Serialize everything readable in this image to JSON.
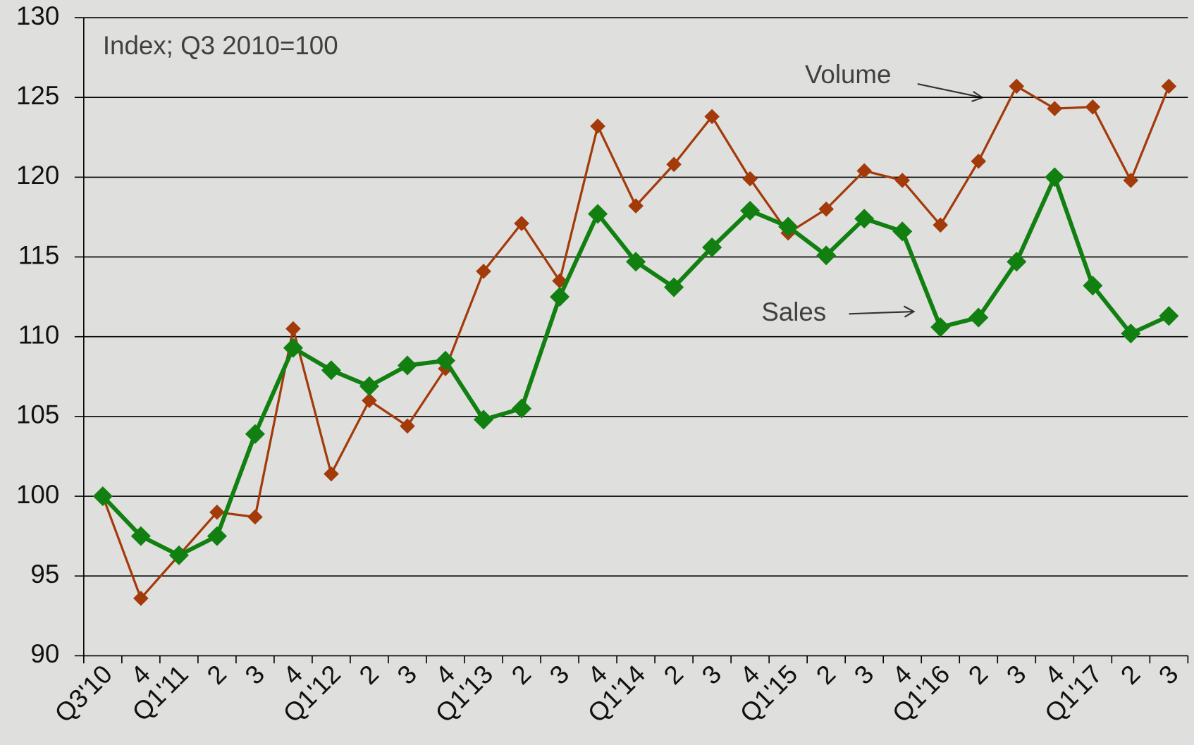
{
  "chart_data": {
    "type": "line",
    "subtitle": "Index; Q3 2010=100",
    "categories": [
      "Q3'10",
      "4",
      "Q1'11",
      "2",
      "3",
      "4",
      "Q1'12",
      "2",
      "3",
      "4",
      "Q1'13",
      "2",
      "3",
      "4",
      "Q1'14",
      "2",
      "3",
      "4",
      "Q1'15",
      "2",
      "3",
      "4",
      "Q1'16",
      "2",
      "3",
      "4",
      "Q1'17",
      "2",
      "3"
    ],
    "series": [
      {
        "name": "Volume",
        "color": "#a33a0a",
        "values": [
          100,
          93.6,
          96.3,
          99.0,
          98.7,
          110.5,
          101.4,
          106.0,
          104.4,
          108.0,
          114.1,
          117.1,
          113.5,
          123.2,
          118.2,
          120.8,
          123.8,
          119.9,
          116.5,
          118.0,
          120.4,
          119.8,
          117.0,
          121.0,
          125.7,
          124.3,
          124.4,
          119.8,
          125.7
        ]
      },
      {
        "name": "Sales",
        "color": "#118011",
        "values": [
          100,
          97.5,
          96.3,
          97.5,
          103.9,
          109.3,
          107.9,
          106.9,
          108.2,
          108.5,
          104.8,
          105.5,
          112.5,
          117.7,
          114.7,
          113.1,
          115.6,
          117.9,
          116.9,
          115.1,
          117.4,
          116.6,
          110.6,
          111.2,
          114.7,
          120.0,
          113.2,
          110.2,
          111.3
        ]
      }
    ],
    "ylim": [
      90,
      130
    ],
    "yticks": [
      90,
      95,
      100,
      105,
      110,
      115,
      120,
      125,
      130
    ],
    "grid": true
  }
}
